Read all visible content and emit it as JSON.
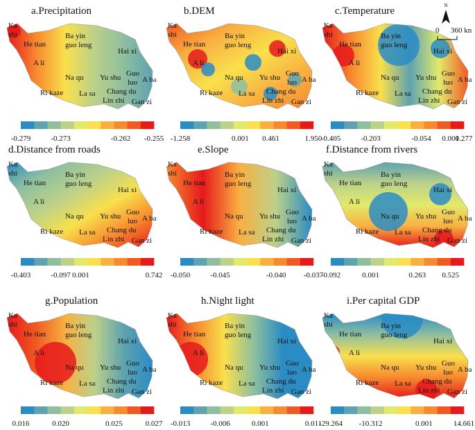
{
  "legend_colors": [
    "#2b8cc4",
    "#5fa3b0",
    "#8fbf9f",
    "#bcd18a",
    "#e2ea6c",
    "#f9e04c",
    "#f9b041",
    "#f7892f",
    "#f05a22",
    "#e6191b"
  ],
  "places": [
    "Ka",
    "shi",
    "He tian",
    "A li",
    "Ba yin",
    "guo leng",
    "Hai xi",
    "Na qu",
    "Yu shu",
    "Guo",
    "luo",
    "A ba",
    "Ri kaze",
    "La sa",
    "Chang du",
    "Lin zhi",
    "Gan zi"
  ],
  "scale": {
    "north": "N",
    "zero": "0",
    "distance": "360 kn"
  },
  "panels": [
    {
      "title": "a.Precipitation",
      "ticks": [
        "-0.279",
        "-0.273",
        "-0.262",
        "-0.255"
      ],
      "map_colors": [
        "#e6191b",
        "#f7892f",
        "#f9e04c",
        "#bcd18a",
        "#8fbf9f",
        "#5fa3b0"
      ]
    },
    {
      "title": "b.DEM",
      "ticks": [
        "-1.258",
        "0.001",
        "0.461",
        "1.950"
      ],
      "map_colors": [
        "#f05a22",
        "#f9b041",
        "#f9e04c",
        "#f9b041",
        "#f7892f"
      ]
    },
    {
      "title": "c.Temperature",
      "ticks": [
        "-0.405",
        "-0.203",
        "-0.054",
        "0.001",
        "0.277"
      ],
      "map_colors": [
        "#e6191b",
        "#f7892f",
        "#f9e04c",
        "#5fa3b0",
        "#e2ea6c",
        "#f05a22"
      ]
    },
    {
      "title": "d.Distance from roads",
      "ticks": [
        "-0.403",
        "-0.097",
        "0.001",
        "0.742"
      ],
      "map_colors": [
        "#2b8cc4",
        "#8fbf9f",
        "#bcd18a",
        "#f9e04c",
        "#f7892f",
        "#e6191b"
      ]
    },
    {
      "title": "e.Slope",
      "ticks": [
        "-0.050",
        "-0.045",
        "-0.040",
        "-0.037"
      ],
      "map_colors": [
        "#f7892f",
        "#e6191b",
        "#f9b041",
        "#bcd18a",
        "#2b8cc4"
      ]
    },
    {
      "title": "f.Distance from rivers",
      "ticks": [
        "-0.092",
        "0.001",
        "0.263",
        "0.525"
      ],
      "map_colors": [
        "#5fa3b0",
        "#bcd18a",
        "#e2ea6c",
        "#f9b041",
        "#e6191b"
      ]
    },
    {
      "title": "g.Population",
      "ticks": [
        "0.016",
        "0.020",
        "0.025",
        "0.027"
      ],
      "map_colors": [
        "#e6191b",
        "#f05a22",
        "#f9b041",
        "#bcd18a",
        "#5fa3b0",
        "#2b8cc4"
      ]
    },
    {
      "title": "h.Night light",
      "ticks": [
        "-0.013",
        "-0.006",
        "0.001",
        "0.011"
      ],
      "map_colors": [
        "#e6191b",
        "#f7892f",
        "#f9e04c",
        "#8fbf9f",
        "#2b8cc4",
        "#2b8cc4"
      ]
    },
    {
      "title": "i.Per capital GDP",
      "ticks": [
        "-29.264",
        "-10.312",
        "0.001",
        "14.661"
      ],
      "map_colors": [
        "#2b8cc4",
        "#8fbf9f",
        "#f9e04c",
        "#f7892f",
        "#e6191b"
      ]
    }
  ]
}
